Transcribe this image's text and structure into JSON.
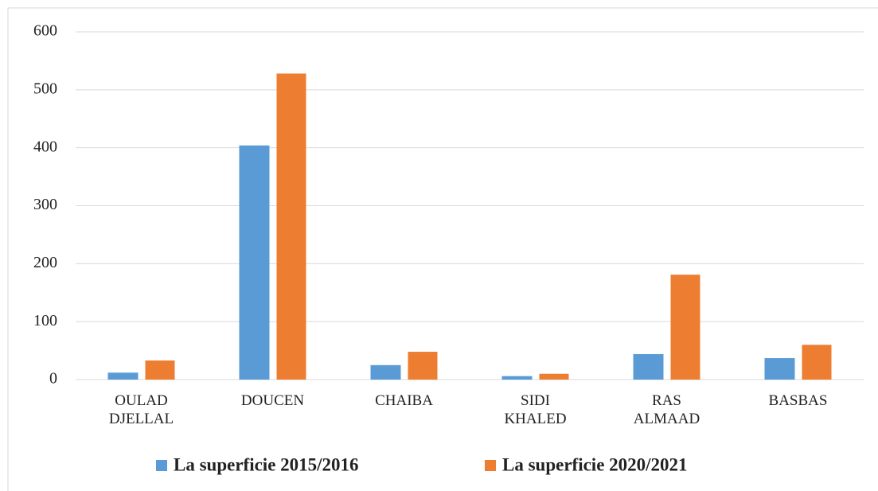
{
  "chart_data": {
    "type": "bar",
    "categories": [
      "OULAD DJELLAL",
      "DOUCEN",
      "CHAIBA",
      "SIDI KHALED",
      "RAS ALMAAD",
      "BASBAS"
    ],
    "series": [
      {
        "name": "La superficie 2015/2016",
        "color": "#5b9bd5",
        "values": [
          12,
          404,
          25,
          6,
          44,
          37
        ]
      },
      {
        "name": "La superficie 2020/2021",
        "color": "#ed7d31",
        "values": [
          33,
          528,
          48,
          10,
          181,
          60
        ]
      }
    ],
    "ylim": [
      0,
      600
    ],
    "yticks": [
      0,
      100,
      200,
      300,
      400,
      500,
      600
    ],
    "grid": true,
    "legend": "bottom"
  }
}
